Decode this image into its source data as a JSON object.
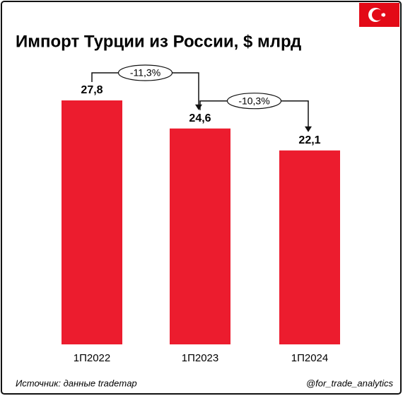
{
  "chart_data": {
    "type": "bar",
    "title": "Импорт Турции из России, $ млрд",
    "categories": [
      "1П2022",
      "1П2023",
      "1П2024"
    ],
    "values": [
      27.8,
      24.6,
      22.1
    ],
    "value_labels": [
      "27,8",
      "24,6",
      "22,1"
    ],
    "color": "#ec1c2e",
    "annotations": [
      "-11,3%",
      "-10,3%"
    ],
    "source": "Источник: данные trademap",
    "credit": "@for_trade_analytics"
  }
}
